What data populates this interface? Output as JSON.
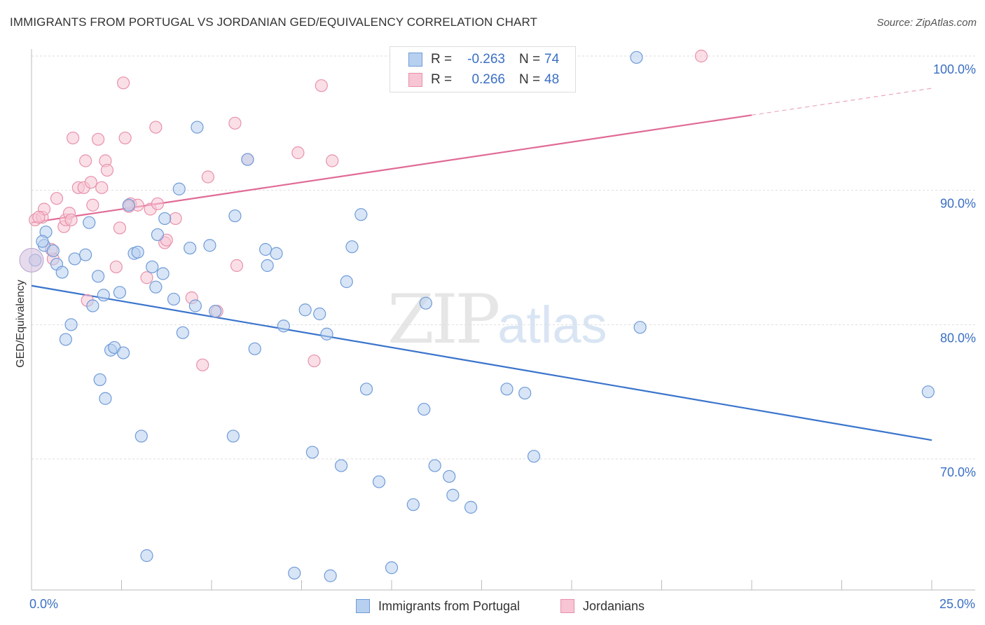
{
  "header": {
    "title": "IMMIGRANTS FROM PORTUGAL VS JORDANIAN GED/EQUIVALENCY CORRELATION CHART",
    "source": "Source: ZipAtlas.com"
  },
  "watermark": {
    "zip": "ZIP",
    "atlas": "atlas"
  },
  "legend": {
    "rows": [
      {
        "r_label": "R =",
        "r_value": "-0.263",
        "n_label": "N =",
        "n_value": "74"
      },
      {
        "r_label": "R =",
        "r_value": "0.266",
        "n_label": "N =",
        "n_value": "48"
      }
    ]
  },
  "colors": {
    "blue_fill": "#b8d0ef",
    "blue_stroke": "#6f9bd8",
    "blue_line": "#3a74cc",
    "pink_fill": "#f7c5d4",
    "pink_stroke": "#e891ab",
    "pink_line": "#e06a96",
    "axis_text": "#3a6fc4"
  },
  "chart_data": {
    "type": "scatter",
    "title": "IMMIGRANTS FROM PORTUGAL VS JORDANIAN GED/EQUIVALENCY CORRELATION CHART",
    "xlabel": "",
    "ylabel": "GED/Equivalency",
    "xlim": [
      0,
      25
    ],
    "ylim": [
      59.5,
      101.5
    ],
    "x_tick_labels": [
      "0.0%",
      "25.0%"
    ],
    "y_tick_labels": [
      "100.0%",
      "90.0%",
      "80.0%",
      "70.0%"
    ],
    "y_ticks": [
      100,
      90,
      80,
      70
    ],
    "grid": true,
    "legend_position": "top-center",
    "series": [
      {
        "name": "Immigrants from Portugal",
        "color": "#6f9bd8",
        "points": [
          [
            0.1,
            84.8
          ],
          [
            0.4,
            86.9
          ],
          [
            0.35,
            85.9
          ],
          [
            0.6,
            85.5
          ],
          [
            0.7,
            84.5
          ],
          [
            0.85,
            83.9
          ],
          [
            0.95,
            78.9
          ],
          [
            1.1,
            80.0
          ],
          [
            1.2,
            84.9
          ],
          [
            1.5,
            85.2
          ],
          [
            1.6,
            87.6
          ],
          [
            1.7,
            81.4
          ],
          [
            1.85,
            83.6
          ],
          [
            1.9,
            75.9
          ],
          [
            2.05,
            74.5
          ],
          [
            2.2,
            78.1
          ],
          [
            2.3,
            78.3
          ],
          [
            2.45,
            82.4
          ],
          [
            2.55,
            77.9
          ],
          [
            2.7,
            88.9
          ],
          [
            2.85,
            85.3
          ],
          [
            2.95,
            85.4
          ],
          [
            3.05,
            71.7
          ],
          [
            3.2,
            62.8
          ],
          [
            3.35,
            84.3
          ],
          [
            3.45,
            82.8
          ],
          [
            3.5,
            86.7
          ],
          [
            3.65,
            83.8
          ],
          [
            3.7,
            87.9
          ],
          [
            4.1,
            90.1
          ],
          [
            4.2,
            79.4
          ],
          [
            4.4,
            85.7
          ],
          [
            4.55,
            81.4
          ],
          [
            4.6,
            94.7
          ],
          [
            4.95,
            85.9
          ],
          [
            5.1,
            81.0
          ],
          [
            5.65,
            88.1
          ],
          [
            5.6,
            71.7
          ],
          [
            6.0,
            92.3
          ],
          [
            6.2,
            78.2
          ],
          [
            6.5,
            85.6
          ],
          [
            6.55,
            84.4
          ],
          [
            6.8,
            85.3
          ],
          [
            7.0,
            79.9
          ],
          [
            7.3,
            61.5
          ],
          [
            7.6,
            81.1
          ],
          [
            7.8,
            70.5
          ],
          [
            8.0,
            80.8
          ],
          [
            8.2,
            79.3
          ],
          [
            8.3,
            61.3
          ],
          [
            8.6,
            69.5
          ],
          [
            8.75,
            83.2
          ],
          [
            8.9,
            85.8
          ],
          [
            9.15,
            88.2
          ],
          [
            9.3,
            75.2
          ],
          [
            9.65,
            68.3
          ],
          [
            10.0,
            61.9
          ],
          [
            10.6,
            66.6
          ],
          [
            10.9,
            73.7
          ],
          [
            10.95,
            81.6
          ],
          [
            11.2,
            69.5
          ],
          [
            11.6,
            68.7
          ],
          [
            11.7,
            67.3
          ],
          [
            12.2,
            66.4
          ],
          [
            13.2,
            75.2
          ],
          [
            13.7,
            74.9
          ],
          [
            13.95,
            70.2
          ],
          [
            14.0,
            100.0
          ],
          [
            16.8,
            99.9
          ],
          [
            16.9,
            79.8
          ],
          [
            24.9,
            75.0
          ],
          [
            3.95,
            81.9
          ],
          [
            2.0,
            82.2
          ],
          [
            0.3,
            86.2
          ]
        ],
        "trend": {
          "x": [
            0,
            25
          ],
          "y": [
            82.9,
            71.4
          ]
        }
      },
      {
        "name": "Jordanians",
        "color": "#e891ab",
        "points": [
          [
            0.1,
            87.8
          ],
          [
            0.3,
            88.0
          ],
          [
            0.35,
            88.6
          ],
          [
            0.6,
            84.9
          ],
          [
            0.7,
            89.4
          ],
          [
            0.9,
            87.3
          ],
          [
            0.95,
            87.8
          ],
          [
            1.05,
            88.3
          ],
          [
            1.15,
            93.9
          ],
          [
            1.3,
            90.2
          ],
          [
            1.45,
            90.2
          ],
          [
            1.5,
            92.2
          ],
          [
            1.55,
            81.8
          ],
          [
            1.65,
            90.6
          ],
          [
            1.7,
            88.9
          ],
          [
            1.85,
            93.8
          ],
          [
            1.95,
            90.2
          ],
          [
            2.05,
            92.2
          ],
          [
            2.1,
            91.5
          ],
          [
            2.35,
            84.3
          ],
          [
            2.45,
            87.2
          ],
          [
            2.55,
            98.0
          ],
          [
            2.6,
            93.9
          ],
          [
            2.75,
            89.0
          ],
          [
            2.95,
            88.9
          ],
          [
            3.2,
            83.5
          ],
          [
            3.3,
            88.6
          ],
          [
            3.45,
            94.7
          ],
          [
            3.5,
            89.0
          ],
          [
            3.7,
            86.1
          ],
          [
            3.75,
            86.3
          ],
          [
            4.0,
            87.9
          ],
          [
            4.45,
            82.0
          ],
          [
            4.75,
            77.0
          ],
          [
            4.9,
            91.0
          ],
          [
            5.15,
            81.0
          ],
          [
            5.65,
            95.0
          ],
          [
            5.7,
            84.4
          ],
          [
            6.0,
            92.3
          ],
          [
            7.4,
            92.8
          ],
          [
            7.85,
            77.3
          ],
          [
            8.05,
            97.8
          ],
          [
            8.35,
            92.2
          ],
          [
            18.6,
            100.0
          ],
          [
            0.55,
            85.6
          ],
          [
            1.1,
            87.8
          ],
          [
            2.7,
            88.8
          ],
          [
            0.2,
            88.0
          ]
        ],
        "trend": {
          "x": [
            0,
            20
          ],
          "y": [
            87.6,
            95.6
          ]
        },
        "trend_dashed": {
          "x": [
            20,
            25
          ],
          "y": [
            95.6,
            97.6
          ]
        }
      }
    ]
  },
  "bottom_legend": {
    "items": [
      "Immigrants from Portugal",
      "Jordanians"
    ]
  }
}
